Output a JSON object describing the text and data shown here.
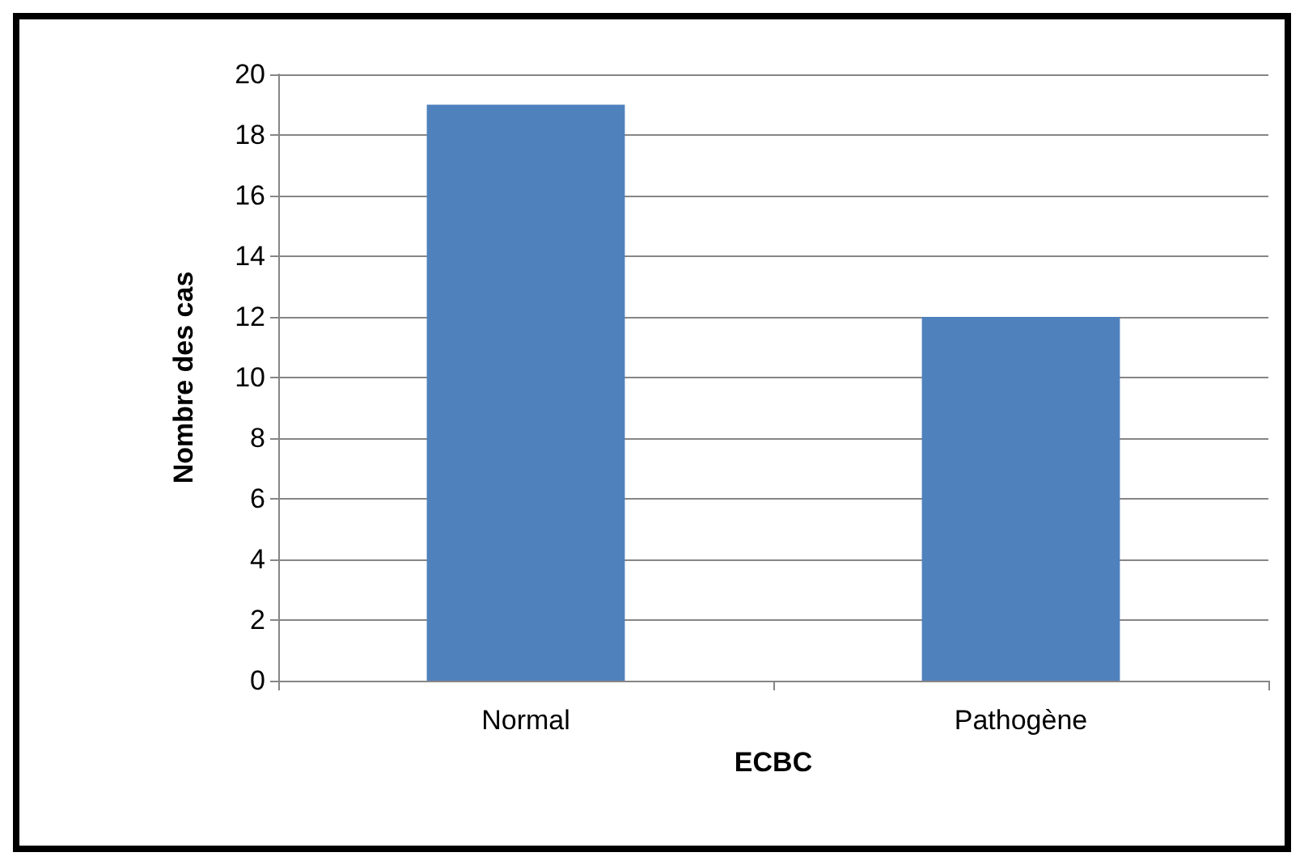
{
  "chart_data": {
    "type": "bar",
    "xlabel": "ECBC",
    "ylabel": "Nombre des cas",
    "categories": [
      "Normal",
      "Pathogène"
    ],
    "values": [
      19,
      12
    ],
    "color": "#4f81bd",
    "ylim": [
      0,
      20
    ],
    "yticks": [
      0,
      2,
      4,
      6,
      8,
      10,
      12,
      14,
      16,
      18,
      20
    ],
    "grid": "y"
  }
}
